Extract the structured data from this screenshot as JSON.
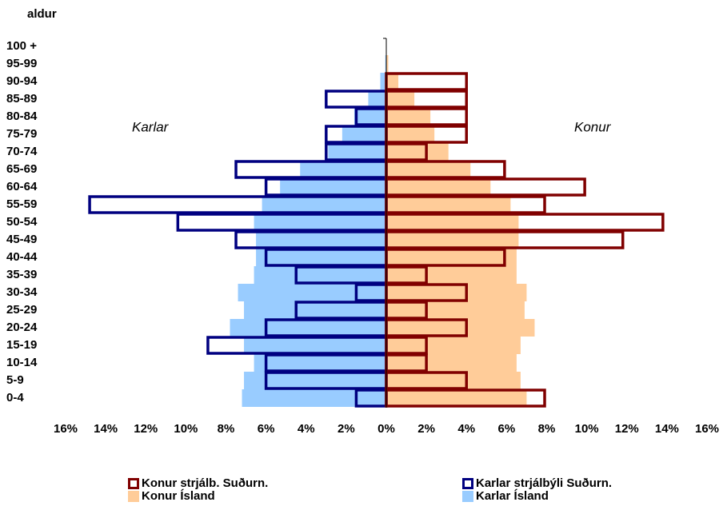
{
  "chart_data": {
    "type": "population-pyramid",
    "y_axis_label": "aldur",
    "annotations": [
      "Karlar",
      "Konur"
    ],
    "categories": [
      "0-4",
      "5-9",
      "10-14",
      "15-19",
      "20-24",
      "25-29",
      "30-34",
      "35-39",
      "40-44",
      "45-49",
      "50-54",
      "55-59",
      "60-64",
      "65-69",
      "70-74",
      "75-79",
      "80-84",
      "85-89",
      "90-94",
      "95-99",
      "100 +"
    ],
    "series": [
      {
        "name": "Karlar Ísland",
        "color": "#99ccff",
        "style": "fill",
        "values": [
          -7.2,
          -7.1,
          -6.6,
          -7.1,
          -7.8,
          -7.1,
          -7.4,
          -6.6,
          -6.5,
          -6.5,
          -6.6,
          -6.2,
          -5.3,
          -4.3,
          -2.9,
          -2.2,
          -1.6,
          -0.9,
          -0.3,
          -0.05,
          0
        ]
      },
      {
        "name": "Konur Ísland",
        "color": "#ffcc99",
        "style": "fill",
        "values": [
          7.0,
          6.7,
          6.5,
          6.7,
          7.4,
          6.9,
          7.0,
          6.5,
          6.5,
          6.6,
          6.6,
          6.2,
          5.2,
          4.2,
          3.1,
          2.4,
          2.2,
          1.4,
          0.6,
          0.1,
          0
        ]
      },
      {
        "name": "Karlar strjálbýli Suðurn.",
        "color": "#000080",
        "style": "outline",
        "values": [
          -1.5,
          -6.0,
          -6.0,
          -8.9,
          -6.0,
          -4.5,
          -1.5,
          -4.5,
          -6.0,
          -7.5,
          -10.4,
          -14.8,
          -6.0,
          -7.5,
          -3.0,
          -3.0,
          -1.5,
          -3.0,
          0,
          0,
          0
        ]
      },
      {
        "name": "Konur strjálb. Suðurn.",
        "color": "#800000",
        "style": "outline",
        "values": [
          7.9,
          4.0,
          2.0,
          2.0,
          4.0,
          2.0,
          4.0,
          2.0,
          5.9,
          11.8,
          13.8,
          7.9,
          9.9,
          5.9,
          2.0,
          4.0,
          4.0,
          4.0,
          4.0,
          0,
          0
        ]
      }
    ],
    "legend_order": [
      3,
      2,
      1,
      0
    ],
    "xlim": [
      -16,
      16
    ],
    "xticks": [
      {
        "value": -16,
        "label": "16%"
      },
      {
        "value": -14,
        "label": "14%"
      },
      {
        "value": -12,
        "label": "12%"
      },
      {
        "value": -10,
        "label": "10%"
      },
      {
        "value": -8,
        "label": "8%"
      },
      {
        "value": -6,
        "label": "6%"
      },
      {
        "value": -4,
        "label": "4%"
      },
      {
        "value": -2,
        "label": "2%"
      },
      {
        "value": 0,
        "label": "0%"
      },
      {
        "value": 2,
        "label": "2%"
      },
      {
        "value": 4,
        "label": "4%"
      },
      {
        "value": 6,
        "label": "6%"
      },
      {
        "value": 8,
        "label": "8%"
      },
      {
        "value": 10,
        "label": "10%"
      },
      {
        "value": 12,
        "label": "12%"
      },
      {
        "value": 14,
        "label": "14%"
      },
      {
        "value": 16,
        "label": "16%"
      }
    ],
    "grid": false
  }
}
